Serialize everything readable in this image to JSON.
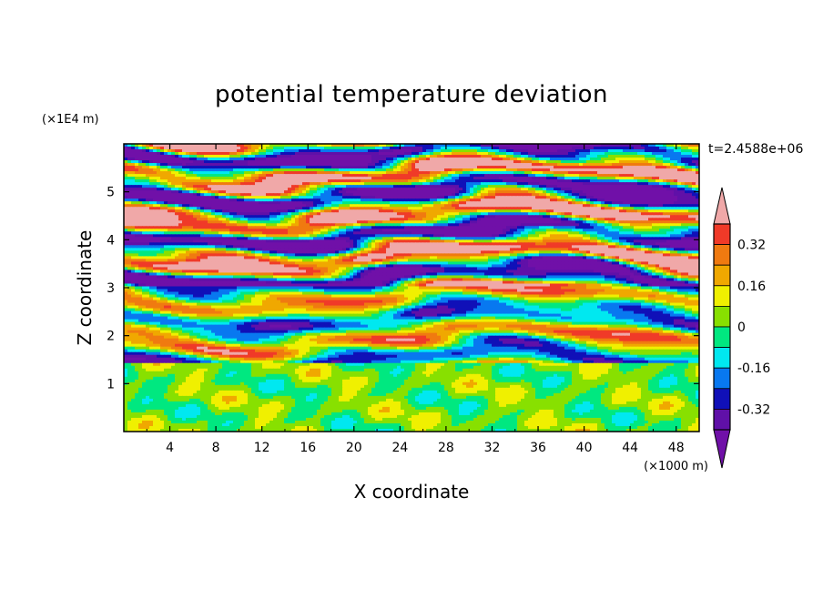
{
  "chart_data": {
    "type": "heatmap",
    "title": "potential temperature deviation",
    "xlabel": "X coordinate",
    "ylabel": "Z coordinate",
    "x_unit": "(×1000 m)",
    "y_unit": "(×1E4 m)",
    "time_label": "t=2.4588e+06",
    "xlim": [
      0,
      50
    ],
    "ylim": [
      0,
      6
    ],
    "x_ticks": [
      "4",
      "8",
      "12",
      "16",
      "20",
      "24",
      "28",
      "32",
      "36",
      "40",
      "44",
      "48"
    ],
    "y_ticks": [
      "1",
      "2",
      "3",
      "4",
      "5"
    ],
    "colorbar": {
      "labels": [
        "0.32",
        "0.16",
        "0",
        "-0.16",
        "-0.32"
      ],
      "levels": [
        0.4,
        0.32,
        0.24,
        0.16,
        0.08,
        0,
        -0.08,
        -0.16,
        -0.24,
        -0.32,
        -0.4
      ],
      "colors": [
        "#f0a8a8",
        "#f03a28",
        "#f07a10",
        "#f0a800",
        "#f0f000",
        "#88e000",
        "#00e880",
        "#00e8f0",
        "#0878f0",
        "#1010b8",
        "#6010a8",
        "#7010a8"
      ]
    }
  }
}
